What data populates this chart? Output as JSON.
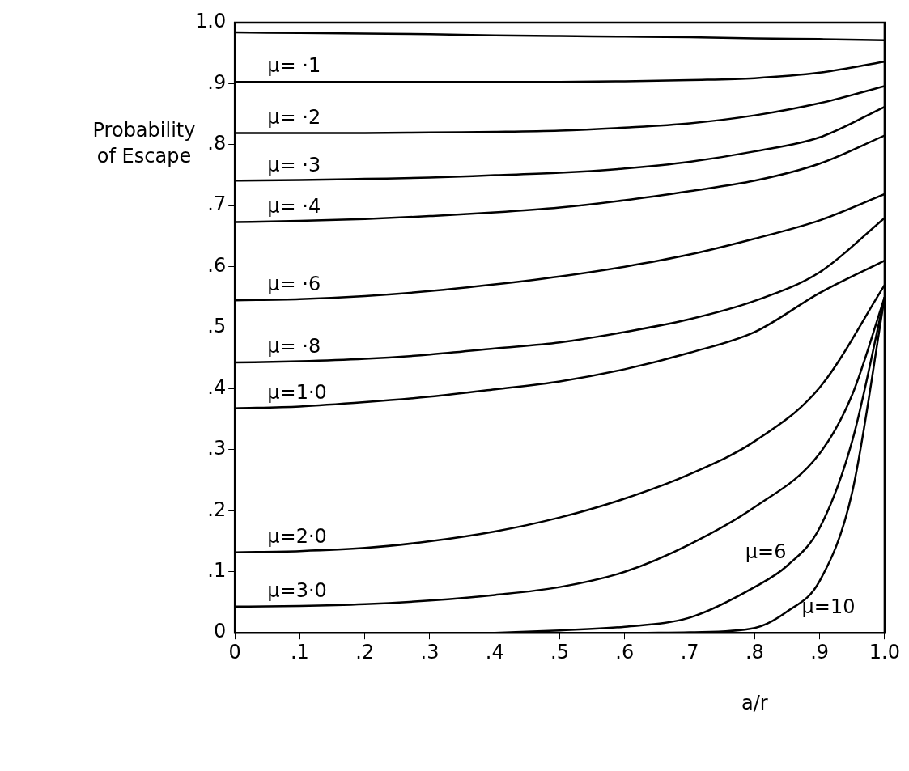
{
  "chart_data": {
    "type": "line",
    "xlabel": "a/r",
    "ylabel": "Probability\nof Escape",
    "xlim": [
      0,
      1
    ],
    "ylim": [
      0,
      1
    ],
    "xticks": [
      0,
      {
        "value": 0.1,
        "label": ".1"
      },
      {
        "value": 0.2,
        "label": ".2"
      },
      {
        "value": 0.3,
        "label": ".3"
      },
      {
        "value": 0.4,
        "label": ".4"
      },
      {
        "value": 0.5,
        "label": ".5"
      },
      {
        "value": 0.6,
        "label": ".6"
      },
      {
        "value": 0.7,
        "label": ".7"
      },
      {
        "value": 0.8,
        "label": ".8"
      },
      {
        "value": 0.9,
        "label": ".9"
      },
      {
        "value": 1,
        "label": "1.0"
      }
    ],
    "yticks": [
      0,
      {
        "value": 0.1,
        "label": ".1"
      },
      {
        "value": 0.2,
        "label": ".2"
      },
      {
        "value": 0.3,
        "label": ".3"
      },
      {
        "value": 0.4,
        "label": ".4"
      },
      {
        "value": 0.5,
        "label": ".5"
      },
      {
        "value": 0.6,
        "label": ".6"
      },
      {
        "value": 0.7,
        "label": ".7"
      },
      {
        "value": 0.8,
        "label": ".8"
      },
      {
        "value": 0.9,
        "label": ".9"
      },
      {
        "value": 1,
        "label": "1.0"
      }
    ],
    "grid": false,
    "legend": false,
    "marker": "none",
    "line_style": "solid",
    "x": [
      0,
      0.1,
      0.2,
      0.3,
      0.4,
      0.5,
      0.6,
      0.7,
      0.8,
      0.9,
      1
    ],
    "series": [
      {
        "color": "#000000",
        "values": [
          0.984,
          0.983,
          0.982,
          0.981,
          0.979,
          0.978,
          0.977,
          0.976,
          0.974,
          0.973,
          0.971
        ]
      },
      {
        "name": "μ= ·1",
        "color": "#000000",
        "values": [
          0.903,
          0.903,
          0.903,
          0.903,
          0.903,
          0.903,
          0.904,
          0.906,
          0.909,
          0.918,
          0.936
        ]
      },
      {
        "name": "μ= ·2",
        "color": "#000000",
        "values": [
          0.819,
          0.819,
          0.819,
          0.82,
          0.821,
          0.823,
          0.828,
          0.835,
          0.848,
          0.868,
          0.896
        ]
      },
      {
        "name": "μ= ·3",
        "color": "#000000",
        "values": [
          0.741,
          0.742,
          0.744,
          0.746,
          0.75,
          0.754,
          0.761,
          0.772,
          0.789,
          0.812,
          0.862
        ]
      },
      {
        "name": "μ= ·4",
        "color": "#000000",
        "values": [
          0.673,
          0.675,
          0.678,
          0.683,
          0.689,
          0.697,
          0.709,
          0.724,
          0.741,
          0.769,
          0.815
        ]
      },
      {
        "name": "μ= ·6",
        "color": "#000000",
        "values": [
          0.545,
          0.547,
          0.552,
          0.56,
          0.571,
          0.584,
          0.6,
          0.62,
          0.646,
          0.676,
          0.719
        ]
      },
      {
        "name": "μ= ·8",
        "color": "#000000",
        "values": [
          0.443,
          0.445,
          0.449,
          0.456,
          0.466,
          0.476,
          0.493,
          0.514,
          0.544,
          0.591,
          0.68
        ]
      },
      {
        "name": "μ=1·0",
        "color": "#000000",
        "values": [
          0.368,
          0.371,
          0.378,
          0.387,
          0.399,
          0.412,
          0.432,
          0.459,
          0.493,
          0.557,
          0.61
        ]
      },
      {
        "name": "μ=2·0",
        "color": "#000000",
        "values": [
          0.132,
          0.134,
          0.139,
          0.15,
          0.166,
          0.189,
          0.22,
          0.26,
          0.314,
          0.402,
          0.57
        ]
      },
      {
        "name": "μ=3·0",
        "color": "#000000",
        "x": [
          0,
          0.1,
          0.2,
          0.3,
          0.4,
          0.5,
          0.6,
          0.7,
          0.8,
          0.9,
          0.95,
          1
        ],
        "values": [
          0.043,
          0.044,
          0.047,
          0.053,
          0.062,
          0.075,
          0.1,
          0.145,
          0.206,
          0.294,
          0.39,
          0.55
        ]
      },
      {
        "name": "μ=6",
        "color": "#000000",
        "x": [
          0.4,
          0.5,
          0.6,
          0.7,
          0.8,
          0.85,
          0.9,
          0.95,
          1
        ],
        "values": [
          0,
          0.004,
          0.01,
          0.025,
          0.075,
          0.11,
          0.172,
          0.314,
          0.55
        ]
      },
      {
        "name": "μ=10",
        "color": "#000000",
        "x": [
          0.63,
          0.7,
          0.8,
          0.85,
          0.9,
          0.95,
          1
        ],
        "values": [
          0,
          0.001,
          0.008,
          0.035,
          0.085,
          0.23,
          0.55
        ]
      }
    ]
  }
}
